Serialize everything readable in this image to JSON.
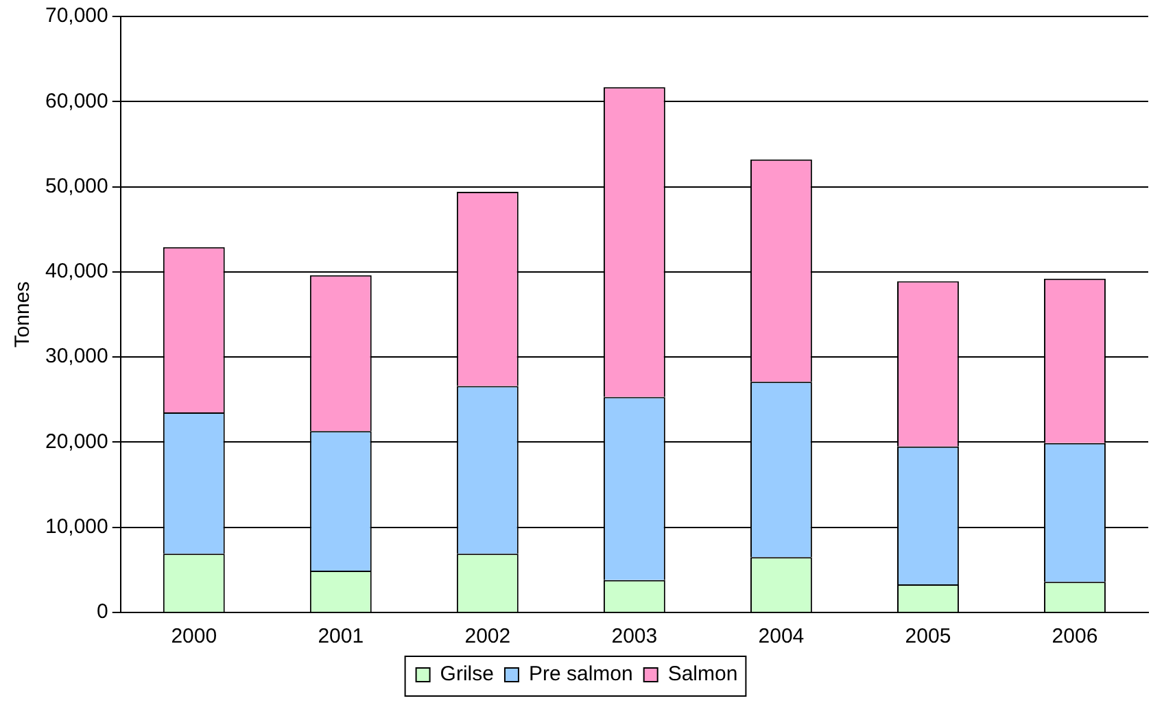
{
  "chart_data": {
    "type": "bar",
    "stacked": true,
    "ylabel": "Tonnes",
    "categories": [
      "2000",
      "2001",
      "2002",
      "2003",
      "2004",
      "2005",
      "2006"
    ],
    "series": [
      {
        "name": "Grilse",
        "color": "#ccffcc",
        "values": [
          6900,
          4900,
          6900,
          3800,
          6500,
          3300,
          3600
        ]
      },
      {
        "name": "Pre salmon",
        "color": "#99ccff",
        "values": [
          16600,
          16400,
          19700,
          21500,
          20600,
          16200,
          16300
        ]
      },
      {
        "name": "Salmon",
        "color": "#ff99cc",
        "values": [
          19400,
          18300,
          22800,
          36400,
          26100,
          19400,
          19300
        ]
      }
    ],
    "ylim": [
      0,
      70000
    ],
    "yticks": [
      0,
      {
        "value": 10000,
        "label": "10,000"
      },
      {
        "value": 20000,
        "label": "20,000"
      },
      {
        "value": 30000,
        "label": "30,000"
      },
      {
        "value": 40000,
        "label": "40,000"
      },
      {
        "value": 50000,
        "label": "50,000"
      },
      {
        "value": 60000,
        "label": "60,000"
      },
      {
        "value": 70000,
        "label": "70,000"
      }
    ],
    "grid": "y",
    "legend": "bottom"
  }
}
